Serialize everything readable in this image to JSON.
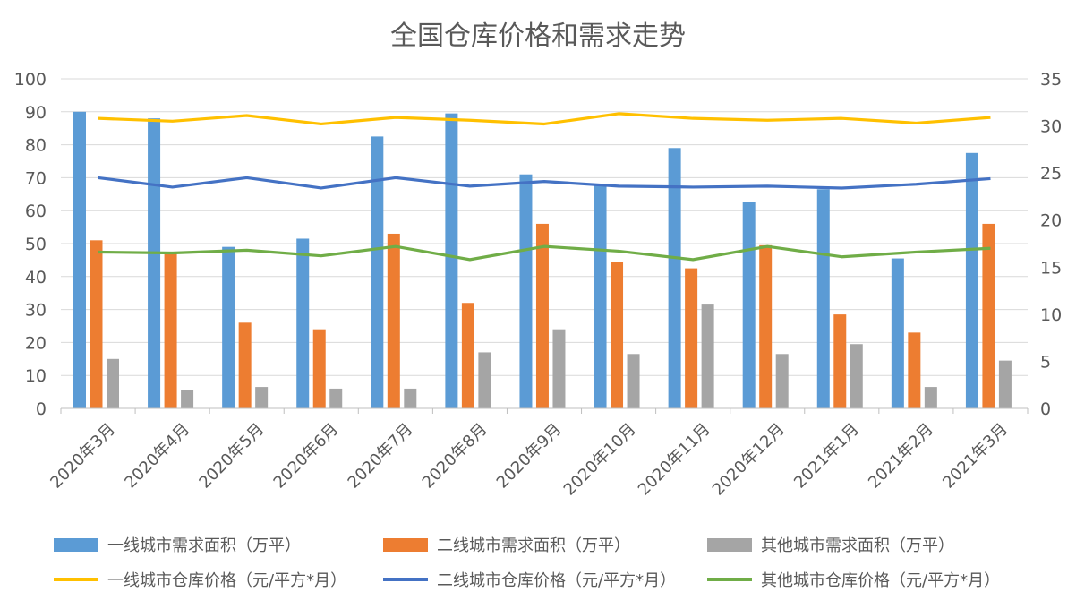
{
  "chart_data": {
    "type": "bar",
    "title": "全国仓库价格和需求走势",
    "categories": [
      "2020年3月",
      "2020年4月",
      "2020年5月",
      "2020年6月",
      "2020年7月",
      "2020年8月",
      "2020年9月",
      "2020年10月",
      "2020年11月",
      "2020年12月",
      "2021年1月",
      "2021年2月",
      "2021年3月"
    ],
    "y_left": {
      "min": 0,
      "max": 100,
      "ticks": [
        "0",
        "10",
        "20",
        "30",
        "40",
        "50",
        "60",
        "70",
        "80",
        "90",
        "100"
      ]
    },
    "y_right": {
      "min": 0,
      "max": 35,
      "ticks": [
        "0",
        "5",
        "10",
        "15",
        "20",
        "25",
        "30",
        "35"
      ]
    },
    "grid": true,
    "legend_position": "bottom",
    "bar_series": [
      {
        "name": "一线城市需求面积（万平）",
        "color": "#5b9bd5",
        "axis": "left",
        "values": [
          90,
          88,
          49,
          51.5,
          82.5,
          89.5,
          71,
          68,
          79,
          62.5,
          66.5,
          45.5,
          77.5
        ]
      },
      {
        "name": "二线城市需求面积（万平）",
        "color": "#ed7d31",
        "axis": "left",
        "values": [
          51,
          47.5,
          26,
          24,
          53,
          32,
          56,
          44.5,
          42.5,
          49.5,
          28.5,
          23,
          56
        ]
      },
      {
        "name": "其他城市需求面积（万平）",
        "color": "#a5a5a5",
        "axis": "left",
        "values": [
          15,
          5.5,
          6.5,
          6,
          6,
          17,
          24,
          16.5,
          31.5,
          16.5,
          19.5,
          6.5,
          14.5
        ]
      }
    ],
    "line_series": [
      {
        "name": "一线城市仓库价格（元/平方*月）",
        "color": "#ffc000",
        "axis": "right",
        "values": [
          30.8,
          30.5,
          31.1,
          30.2,
          30.9,
          30.6,
          30.2,
          31.3,
          30.8,
          30.6,
          30.8,
          30.3,
          30.9
        ]
      },
      {
        "name": "二线城市仓库价格（元/平方*月）",
        "color": "#4472c4",
        "axis": "right",
        "values": [
          24.5,
          23.5,
          24.5,
          23.4,
          24.5,
          23.6,
          24.1,
          23.6,
          23.5,
          23.6,
          23.4,
          23.8,
          24.4
        ]
      },
      {
        "name": "其他城市仓库价格（元/平方*月）",
        "color": "#70ad47",
        "axis": "right",
        "values": [
          16.6,
          16.5,
          16.8,
          16.2,
          17.2,
          15.8,
          17.2,
          16.7,
          15.8,
          17.2,
          16.1,
          16.6,
          17.0
        ]
      }
    ]
  }
}
